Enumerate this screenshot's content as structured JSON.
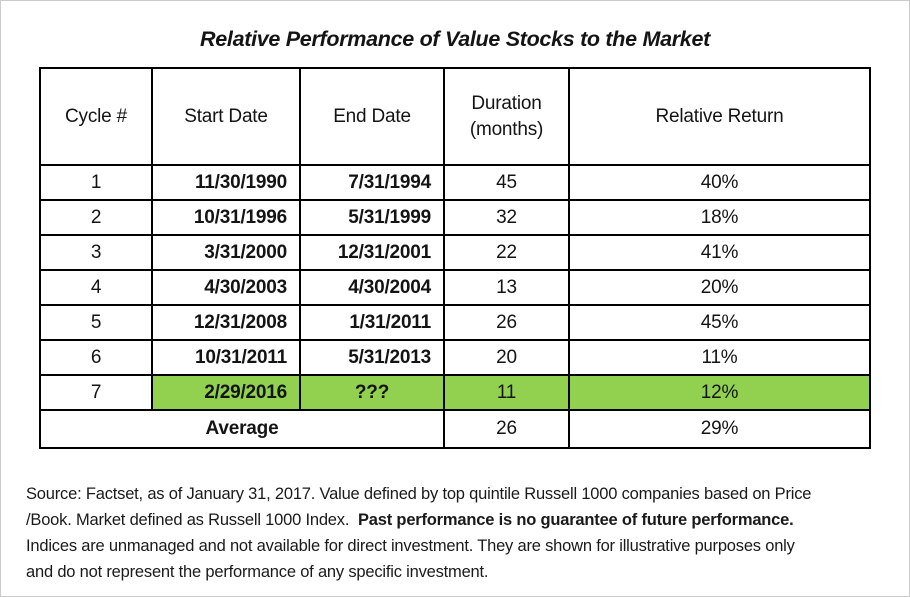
{
  "title": "Relative Performance of Value Stocks to the Market",
  "table": {
    "headers": [
      "Cycle #",
      "Start Date",
      "End Date",
      "Duration\n(months)",
      "Relative Return"
    ],
    "highlight_color": "#92D050",
    "rows": [
      {
        "cycle": "1",
        "start": "11/30/1990",
        "end": "7/31/1994",
        "duration": "45",
        "ret": "40%",
        "highlight": false
      },
      {
        "cycle": "2",
        "start": "10/31/1996",
        "end": "5/31/1999",
        "duration": "32",
        "ret": "18%",
        "highlight": false
      },
      {
        "cycle": "3",
        "start": "3/31/2000",
        "end": "12/31/2001",
        "duration": "22",
        "ret": "41%",
        "highlight": false
      },
      {
        "cycle": "4",
        "start": "4/30/2003",
        "end": "4/30/2004",
        "duration": "13",
        "ret": "20%",
        "highlight": false
      },
      {
        "cycle": "5",
        "start": "12/31/2008",
        "end": "1/31/2011",
        "duration": "26",
        "ret": "45%",
        "highlight": false
      },
      {
        "cycle": "6",
        "start": "10/31/2011",
        "end": "5/31/2013",
        "duration": "20",
        "ret": "11%",
        "highlight": false
      },
      {
        "cycle": "7",
        "start": "2/29/2016",
        "end": "???",
        "duration": "11",
        "ret": "12%",
        "highlight": true,
        "end_align": "center"
      }
    ],
    "average": {
      "label": "Average",
      "duration": "26",
      "ret": "29%"
    }
  },
  "footnote": {
    "lines": [
      {
        "segments": [
          {
            "text": "Source: Factset, as of January 31, 2017. Value defined by top quintile Russell 1000 companies based on Price",
            "bold": false
          }
        ]
      },
      {
        "segments": [
          {
            "text": "/Book. Market defined as Russell 1000 Index.  ",
            "bold": false
          },
          {
            "text": "Past performance is no guarantee of future performance.",
            "bold": true
          }
        ]
      },
      {
        "segments": [
          {
            "text": "Indices are unmanaged and not available for direct investment. They are shown for illustrative purposes only",
            "bold": false
          }
        ]
      },
      {
        "segments": [
          {
            "text": "and do not represent the performance of any specific investment.",
            "bold": false
          }
        ]
      }
    ]
  }
}
